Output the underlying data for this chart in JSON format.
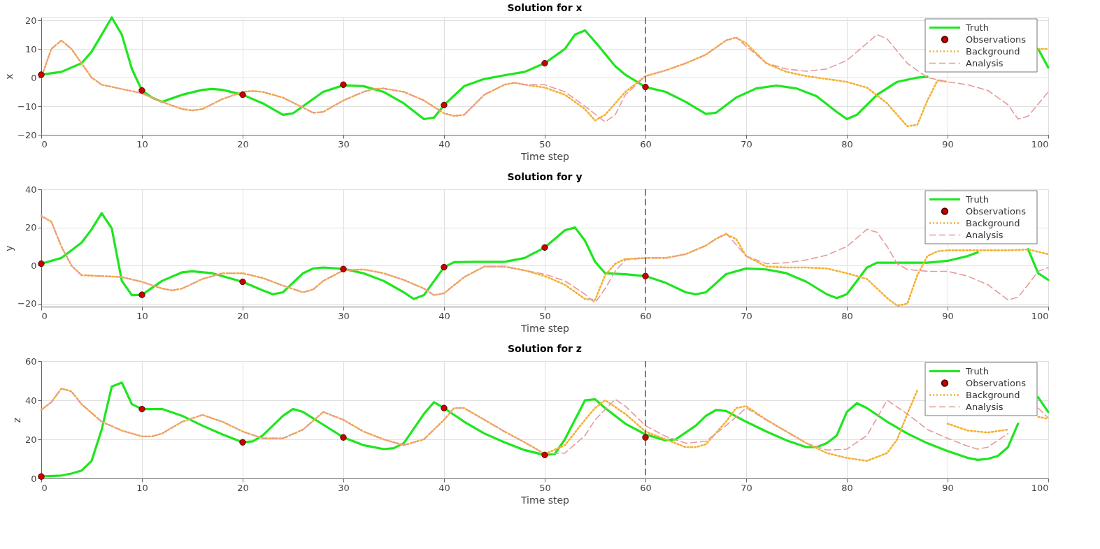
{
  "chart_data": [
    {
      "type": "line",
      "title": "Solution for x",
      "xlabel": "Time step",
      "ylabel": "x",
      "xlim": [
        0,
        100
      ],
      "xticks": [
        0,
        10,
        20,
        30,
        40,
        50,
        60,
        70,
        80,
        90,
        100
      ],
      "ylim": [
        -20,
        21
      ],
      "yticks": [
        -20,
        -10,
        0,
        10,
        20
      ],
      "grid": true,
      "legend": "top right",
      "ref_lines": [
        {
          "axis": "x",
          "value": 60,
          "color": "#444444",
          "line_style": "dashed"
        }
      ],
      "series": [
        {
          "name": "Truth",
          "color": "#1ee61e",
          "line_style": "solid",
          "x": [
            0,
            2,
            4,
            5,
            6,
            7,
            8,
            9,
            10,
            11,
            12,
            14,
            16,
            17,
            18,
            20,
            22,
            24,
            25,
            26,
            28,
            30,
            32,
            34,
            36,
            38,
            39,
            40,
            42,
            44,
            46,
            48,
            50,
            52,
            53,
            54,
            55,
            57,
            58,
            60,
            62,
            64,
            66,
            67,
            69,
            71,
            73,
            75,
            77,
            79,
            80,
            81,
            83,
            85,
            87,
            88,
            89,
            97,
            99,
            100
          ],
          "values": [
            1,
            2,
            5,
            9,
            15,
            21,
            15,
            3,
            -4.5,
            -7,
            -8.5,
            -6,
            -4.3,
            -4,
            -4.3,
            -6,
            -9,
            -13,
            -12.5,
            -10,
            -5,
            -2.7,
            -3,
            -5,
            -9,
            -14.5,
            -14,
            -9.6,
            -3,
            -0.5,
            0.8,
            2,
            5,
            10,
            15,
            16.5,
            12.5,
            4,
            1,
            -3.3,
            -5,
            -8.5,
            -12.7,
            -12.3,
            -7,
            -3.8,
            -2.8,
            -3.8,
            -6.5,
            -12,
            -14.5,
            -13,
            -6,
            -1.5,
            0,
            0.3,
            null,
            null,
            10,
            3.5
          ]
        },
        {
          "name": "Observations",
          "type": "scatter",
          "color": "#cc0000",
          "marker": "circle",
          "x": [
            0,
            10,
            20,
            30,
            40,
            50,
            60
          ],
          "values": [
            1,
            -4.5,
            -6,
            -2.5,
            -9.6,
            5,
            -3.3
          ]
        },
        {
          "name": "Background",
          "color": "#f5b133",
          "line_style": "dotted",
          "x": [
            0,
            1,
            2,
            3,
            4,
            5,
            6,
            8,
            10,
            12,
            14,
            15,
            16,
            18,
            20,
            21,
            22,
            24,
            26,
            27,
            28,
            30,
            32,
            33,
            34,
            36,
            38,
            40,
            41,
            42,
            44,
            46,
            47,
            48,
            50,
            52,
            54,
            55,
            56,
            58,
            60,
            62,
            64,
            66,
            68,
            69,
            70,
            72,
            74,
            76,
            78,
            80,
            82,
            84,
            86,
            87,
            88,
            89,
            90,
            91,
            99,
            100
          ],
          "values": [
            0,
            10,
            13,
            10,
            5,
            0,
            -2.5,
            -4,
            -5.5,
            -8.5,
            -11,
            -11.5,
            -11,
            -7.5,
            -5,
            -4.7,
            -5,
            -7,
            -10.5,
            -12.3,
            -12,
            -8,
            -5,
            -4,
            -3.8,
            -5,
            -8,
            -12.5,
            -13.4,
            -13,
            -6,
            -2.5,
            -1.8,
            -2.5,
            -3.5,
            -6,
            -11,
            -15,
            -13,
            -5,
            0.5,
            2.5,
            5,
            8,
            13,
            14,
            12,
            5,
            2,
            0.5,
            -0.5,
            -1.5,
            -3.5,
            -9,
            -17,
            -16.5,
            -8,
            -1,
            -1.5,
            null,
            10,
            10
          ]
        },
        {
          "name": "Analysis",
          "color": "#e89a9a",
          "line_style": "dashed",
          "x": [
            0,
            1,
            2,
            3,
            4,
            5,
            6,
            8,
            10,
            12,
            14,
            15,
            16,
            18,
            20,
            21,
            22,
            24,
            26,
            27,
            28,
            30,
            32,
            33,
            34,
            36,
            38,
            40,
            41,
            42,
            44,
            46,
            47,
            48,
            50,
            52,
            54,
            56,
            57,
            58,
            60,
            62,
            64,
            66,
            68,
            69,
            70,
            72,
            74,
            76,
            78,
            80,
            82,
            83,
            84,
            86,
            88,
            90,
            92,
            94,
            96,
            97,
            98,
            100
          ],
          "values": [
            0,
            10,
            13,
            10,
            5,
            0,
            -2.5,
            -4,
            -5.5,
            -8.5,
            -11,
            -11.5,
            -11,
            -7.5,
            -5,
            -4.7,
            -5,
            -7,
            -10.5,
            -12.3,
            -12,
            -8,
            -5,
            -4,
            -3.8,
            -5,
            -8,
            -12.5,
            -13.4,
            -13,
            -6,
            -2.5,
            -1.8,
            -2.5,
            -2.5,
            -5,
            -10,
            -15.5,
            -13,
            -6,
            0.5,
            2.5,
            5,
            8,
            13,
            14,
            11,
            5,
            3,
            2.2,
            3,
            6,
            12,
            15,
            13.5,
            5,
            0,
            -1.5,
            -2.5,
            -4.5,
            -9.5,
            -14.5,
            -13.5,
            -5
          ]
        }
      ]
    },
    {
      "type": "line",
      "title": "Solution for y",
      "xlabel": "Time step",
      "ylabel": "y",
      "xlim": [
        0,
        100
      ],
      "xticks": [
        0,
        10,
        20,
        30,
        40,
        50,
        60,
        70,
        80,
        90,
        100
      ],
      "ylim": [
        -21.5,
        40
      ],
      "yticks": [
        -20,
        0,
        20,
        40
      ],
      "grid": true,
      "legend": "top right",
      "ref_lines": [
        {
          "axis": "x",
          "value": 60,
          "color": "#444444",
          "line_style": "dashed"
        }
      ],
      "series": [
        {
          "name": "Truth",
          "color": "#1ee61e",
          "line_style": "solid",
          "x": [
            0,
            2,
            4,
            5,
            6,
            7,
            8,
            9,
            10,
            12,
            14,
            15,
            17,
            20,
            22,
            23,
            24,
            26,
            27,
            28,
            30,
            32,
            34,
            36,
            37,
            38,
            40,
            41,
            43,
            46,
            48,
            50,
            52,
            53,
            54,
            55,
            56,
            58,
            60,
            62,
            64,
            65,
            66,
            68,
            70,
            72,
            74,
            76,
            78,
            79,
            80,
            82,
            83,
            85,
            88,
            90,
            92,
            93,
            94,
            98,
            99,
            100
          ],
          "values": [
            1,
            4,
            12,
            19,
            27.5,
            19.5,
            -8,
            -15.5,
            -15.3,
            -8,
            -3.5,
            -3,
            -4,
            -8.5,
            -13,
            -15,
            -14,
            -4,
            -1.5,
            -1,
            -1.7,
            -4,
            -8,
            -14,
            -17.5,
            -15.5,
            -0.8,
            1.8,
            2,
            2,
            4,
            9.5,
            18.5,
            20,
            13,
            2,
            -4,
            -4.5,
            -5.5,
            -9,
            -14,
            -15,
            -14,
            -4.5,
            -1.5,
            -2,
            -4,
            -8.5,
            -15,
            -17,
            -15,
            -1,
            1.5,
            1.5,
            1.5,
            2.5,
            5,
            7,
            null,
            8.6,
            -4,
            -7.5
          ]
        },
        {
          "name": "Observations",
          "type": "scatter",
          "color": "#cc0000",
          "marker": "circle",
          "x": [
            0,
            10,
            20,
            30,
            40,
            50,
            60
          ],
          "values": [
            1,
            -15.3,
            -8.5,
            -1.8,
            -0.8,
            9.5,
            -5.5
          ]
        },
        {
          "name": "Background",
          "color": "#f5b133",
          "line_style": "dotted",
          "x": [
            0,
            1,
            2,
            3,
            4,
            6,
            8,
            10,
            12,
            13,
            14,
            16,
            18,
            20,
            22,
            24,
            26,
            27,
            28,
            30,
            32,
            34,
            36,
            38,
            39,
            40,
            42,
            44,
            46,
            48,
            50,
            52,
            54,
            55,
            56,
            57,
            58,
            60,
            62,
            64,
            66,
            67,
            68,
            69,
            70,
            72,
            74,
            76,
            78,
            80,
            82,
            84,
            85,
            86,
            87,
            88,
            89,
            90,
            92,
            94,
            96,
            98,
            100
          ],
          "values": [
            26,
            23,
            10,
            0,
            -5,
            -5.5,
            -6,
            -8.5,
            -12,
            -13,
            -12,
            -7,
            -4,
            -4,
            -6.5,
            -10.5,
            -14,
            -12.5,
            -8,
            -2.5,
            -2,
            -4,
            -7.5,
            -12,
            -15.5,
            -14.5,
            -6,
            -0.5,
            -0.5,
            -2.5,
            -5.5,
            -10,
            -17.5,
            -18,
            -5,
            1,
            3.5,
            4,
            4,
            6,
            10.5,
            14,
            16.5,
            14,
            5,
            -0.5,
            -1,
            -1,
            -1.5,
            -4,
            -7,
            -17,
            -21,
            -20,
            -5,
            5,
            7.5,
            8,
            8,
            8,
            8,
            8.5,
            6
          ]
        },
        {
          "name": "Analysis",
          "color": "#e89a9a",
          "line_style": "dashed",
          "x": [
            0,
            1,
            2,
            3,
            4,
            6,
            8,
            10,
            12,
            13,
            14,
            16,
            18,
            20,
            22,
            24,
            26,
            27,
            28,
            30,
            32,
            34,
            36,
            38,
            39,
            40,
            42,
            44,
            46,
            48,
            50,
            52,
            54,
            55,
            56,
            57,
            58,
            60,
            62,
            64,
            66,
            67,
            68,
            70,
            72,
            74,
            76,
            78,
            80,
            82,
            83,
            84,
            85,
            86,
            88,
            90,
            92,
            94,
            96,
            97,
            98,
            99,
            100
          ],
          "values": [
            26,
            23,
            10,
            0,
            -5,
            -5.5,
            -6,
            -8.5,
            -12,
            -13,
            -12,
            -7,
            -4,
            -4,
            -6.5,
            -10.5,
            -14,
            -12.5,
            -8,
            -2.5,
            -2,
            -4,
            -7.5,
            -12,
            -15.5,
            -14.5,
            -6,
            -0.5,
            -0.5,
            -2.5,
            -4.5,
            -8,
            -15,
            -19.5,
            -12,
            -3,
            3,
            4,
            4,
            6,
            10.5,
            14,
            17,
            5,
            1,
            1.5,
            3,
            5.5,
            10,
            19,
            17.5,
            10,
            1,
            -2,
            -3,
            -3,
            -5.5,
            -10,
            -18,
            -16.5,
            -10,
            -3,
            -1
          ]
        }
      ]
    },
    {
      "type": "line",
      "title": "Solution for z",
      "xlabel": "Time step",
      "ylabel": "z",
      "xlim": [
        0,
        100
      ],
      "xticks": [
        0,
        10,
        20,
        30,
        40,
        50,
        60,
        70,
        80,
        90,
        100
      ],
      "ylim": [
        0,
        60
      ],
      "yticks": [
        0,
        20,
        40,
        60
      ],
      "grid": true,
      "legend": "top right",
      "ref_lines": [
        {
          "axis": "x",
          "value": 60,
          "color": "#444444",
          "line_style": "dashed"
        }
      ],
      "series": [
        {
          "name": "Truth",
          "color": "#1ee61e",
          "line_style": "solid",
          "x": [
            0,
            2,
            3,
            4,
            5,
            6,
            7,
            8,
            9,
            10,
            12,
            14,
            16,
            18,
            20,
            21,
            22,
            24,
            25,
            26,
            28,
            30,
            32,
            34,
            35,
            36,
            38,
            39,
            40,
            42,
            44,
            46,
            48,
            50,
            51,
            52,
            54,
            55,
            56,
            58,
            60,
            62,
            63,
            65,
            66,
            67,
            68,
            70,
            72,
            74,
            76,
            77,
            78,
            79,
            80,
            81,
            82,
            84,
            86,
            88,
            90,
            92,
            93,
            94,
            95,
            96,
            97,
            98,
            99,
            100
          ],
          "values": [
            1,
            1.5,
            2.5,
            4,
            9,
            25,
            47,
            49,
            38,
            35.5,
            35.5,
            32,
            27,
            22.5,
            18.5,
            19,
            22,
            32,
            35.5,
            34,
            27.5,
            21,
            17,
            15,
            15.5,
            18,
            33,
            39,
            36,
            29,
            23,
            18.5,
            14.5,
            12,
            12.5,
            20,
            40,
            40.5,
            36,
            28,
            22.5,
            19.5,
            20,
            27,
            32,
            35,
            34.5,
            29,
            24,
            19.5,
            16,
            16,
            18,
            22,
            34,
            38.5,
            36,
            29,
            23,
            18,
            14,
            10.5,
            9.5,
            10,
            11.5,
            16,
            28,
            null,
            41.5,
            34
          ]
        },
        {
          "name": "Observations",
          "type": "scatter",
          "color": "#cc0000",
          "marker": "circle",
          "x": [
            0,
            10,
            20,
            30,
            40,
            50,
            60
          ],
          "values": [
            1,
            35.5,
            18.5,
            21,
            36,
            12,
            21
          ]
        },
        {
          "name": "Background",
          "color": "#f5b133",
          "line_style": "dotted",
          "x": [
            0,
            1,
            2,
            3,
            4,
            6,
            8,
            10,
            11,
            12,
            14,
            16,
            18,
            20,
            22,
            24,
            26,
            28,
            30,
            32,
            34,
            36,
            38,
            40,
            41,
            42,
            44,
            46,
            48,
            50,
            52,
            54,
            55,
            56,
            58,
            60,
            62,
            64,
            65,
            66,
            68,
            69,
            70,
            72,
            74,
            76,
            78,
            80,
            82,
            84,
            85,
            86,
            87,
            88,
            90,
            92,
            94,
            96,
            97,
            99,
            100
          ],
          "values": [
            35,
            39,
            46,
            44.5,
            38,
            29,
            24.5,
            21.5,
            21.5,
            23,
            29,
            32.5,
            29,
            24,
            20.5,
            20.5,
            25,
            34,
            30,
            24,
            20,
            17,
            20,
            30,
            36,
            36,
            30,
            24,
            18.5,
            12.5,
            17,
            30,
            36,
            40,
            33,
            24,
            20,
            16,
            16,
            17.5,
            29,
            36,
            37,
            30,
            24,
            18,
            13,
            10.5,
            9,
            13,
            20,
            33,
            45,
            null,
            28,
            24.5,
            23.5,
            25,
            null,
            31.5,
            30.5
          ]
        },
        {
          "name": "Analysis",
          "color": "#e89a9a",
          "line_style": "dashed",
          "x": [
            0,
            1,
            2,
            3,
            4,
            6,
            8,
            10,
            11,
            12,
            14,
            16,
            18,
            20,
            22,
            24,
            26,
            28,
            30,
            32,
            34,
            36,
            38,
            40,
            41,
            42,
            44,
            46,
            48,
            50,
            52,
            54,
            55,
            57,
            58,
            60,
            62,
            64,
            66,
            68,
            70,
            72,
            74,
            76,
            78,
            80,
            82,
            84,
            86,
            88,
            90,
            92,
            93,
            94,
            96,
            97,
            99,
            100
          ],
          "values": [
            35,
            39,
            46,
            44.5,
            38,
            29,
            24.5,
            21.5,
            21.5,
            23,
            29,
            32.5,
            29,
            24,
            20.5,
            20.5,
            25,
            34,
            30,
            24,
            20,
            17,
            20,
            30,
            36,
            36,
            30,
            24,
            18.5,
            12.5,
            13,
            22,
            30,
            40.5,
            37,
            27,
            21.5,
            18,
            19,
            27,
            36,
            30,
            24,
            18,
            14.5,
            15,
            22,
            40,
            33,
            25,
            20.5,
            16.5,
            15,
            16,
            23,
            null,
            36,
            31
          ]
        }
      ]
    }
  ]
}
